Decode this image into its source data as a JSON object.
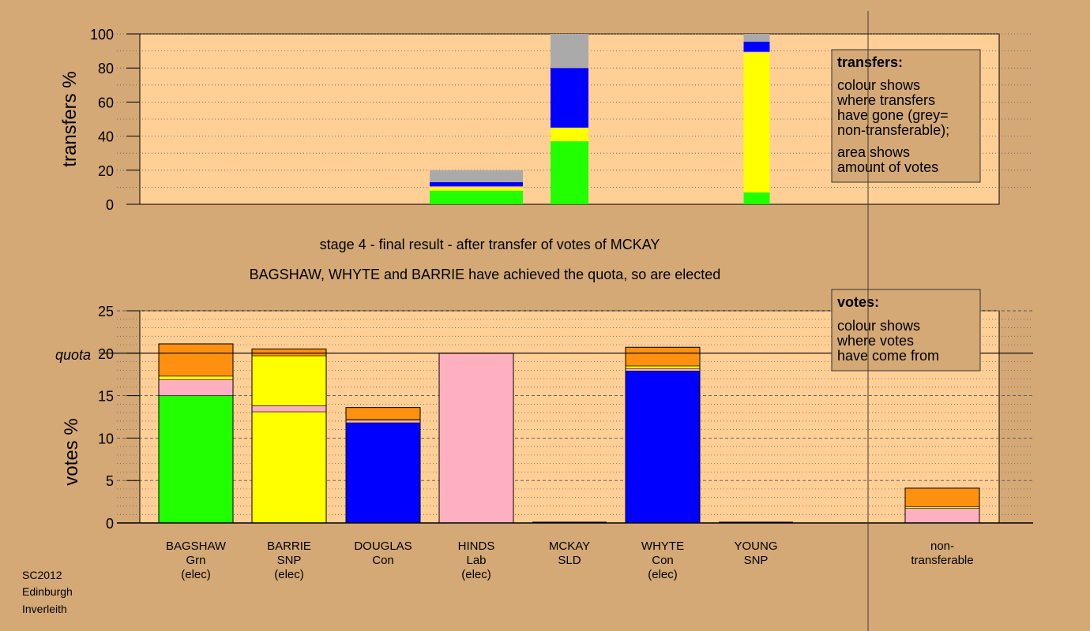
{
  "chart_data": [
    {
      "type": "bar",
      "stacked": true,
      "ylabel": "transfers %",
      "ylim": [
        0,
        100
      ],
      "yticks": [
        0,
        20,
        40,
        60,
        80,
        100
      ],
      "bars": [
        {
          "category": "HINDS",
          "segments": [
            {
              "color": "#22FF00",
              "value": 8
            },
            {
              "color": "#FFFF00",
              "value": 2
            },
            {
              "color": "#FFB0C0",
              "value": 0.5
            },
            {
              "color": "#0000FF",
              "value": 2.5
            },
            {
              "color": "#AAAAAA",
              "value": 7
            }
          ]
        },
        {
          "category": "MCKAY",
          "segments": [
            {
              "color": "#22FF00",
              "value": 37
            },
            {
              "color": "#FFFF00",
              "value": 8
            },
            {
              "color": "#0000FF",
              "value": 35
            },
            {
              "color": "#AAAAAA",
              "value": 20
            }
          ]
        },
        {
          "category": "YOUNG",
          "segments": [
            {
              "color": "#22FF00",
              "value": 7
            },
            {
              "color": "#FFFF00",
              "value": 82
            },
            {
              "color": "#FFB0C0",
              "value": 0.5
            },
            {
              "color": "#0000FF",
              "value": 6
            },
            {
              "color": "#AAAAAA",
              "value": 4.5
            }
          ]
        }
      ],
      "legend": {
        "title": "transfers:",
        "lines": [
          "colour shows",
          "where transfers",
          "have gone (grey=",
          "non-transferable);",
          "area shows",
          "amount of votes"
        ]
      }
    },
    {
      "type": "bar",
      "stacked": true,
      "ylabel": "votes %",
      "ylim": [
        0,
        25
      ],
      "yticks": [
        0,
        5,
        10,
        15,
        20,
        25
      ],
      "quota": {
        "label": "quota",
        "value": 20
      },
      "categories": [
        "BAGSHAW",
        "BARRIE",
        "DOUGLAS",
        "HINDS",
        "MCKAY",
        "WHYTE",
        "YOUNG",
        "non-transferable"
      ],
      "bars": [
        {
          "category": "BAGSHAW",
          "segments": [
            {
              "color": "#22FF00",
              "value": 15
            },
            {
              "color": "#FFB0C0",
              "value": 1.9
            },
            {
              "color": "#FFFF00",
              "value": 0.4
            },
            {
              "color": "#FF9010",
              "value": 3.8
            }
          ]
        },
        {
          "category": "BARRIE",
          "segments": [
            {
              "color": "#FFFF00",
              "value": 13.1
            },
            {
              "color": "#FFB0C0",
              "value": 0.7
            },
            {
              "color": "#FFFF00",
              "value": 5.9
            },
            {
              "color": "#FF9010",
              "value": 0.8
            }
          ]
        },
        {
          "category": "DOUGLAS",
          "segments": [
            {
              "color": "#0000FF",
              "value": 11.8
            },
            {
              "color": "#FFB0C0",
              "value": 0.3
            },
            {
              "color": "#FFFF00",
              "value": 0.1
            },
            {
              "color": "#FF9010",
              "value": 1.4
            }
          ]
        },
        {
          "category": "HINDS",
          "segments": [
            {
              "color": "#FFB0C0",
              "value": 20
            }
          ]
        },
        {
          "category": "MCKAY",
          "segments": [
            {
              "color": "#FF9010",
              "value": 0
            }
          ]
        },
        {
          "category": "WHYTE",
          "segments": [
            {
              "color": "#0000FF",
              "value": 17.9
            },
            {
              "color": "#FFB0C0",
              "value": 0.3
            },
            {
              "color": "#FFFF00",
              "value": 0.3
            },
            {
              "color": "#FF9010",
              "value": 2.2
            }
          ]
        },
        {
          "category": "YOUNG",
          "segments": [
            {
              "color": "#FFFF00",
              "value": 0
            }
          ]
        },
        {
          "category": "non-transferable",
          "segments": [
            {
              "color": "#FFB0C0",
              "value": 1.7
            },
            {
              "color": "#FFFF00",
              "value": 0.2
            },
            {
              "color": "#FF9010",
              "value": 2.2
            }
          ]
        }
      ],
      "legend": {
        "title": "votes:",
        "lines": [
          "colour shows",
          "where votes",
          "have come from"
        ]
      }
    }
  ],
  "candidates": [
    {
      "name": "BAGSHAW",
      "party": "Grn",
      "status": "(elec)"
    },
    {
      "name": "BARRIE",
      "party": "SNP",
      "status": "(elec)"
    },
    {
      "name": "DOUGLAS",
      "party": "Con",
      "status": ""
    },
    {
      "name": "HINDS",
      "party": "Lab",
      "status": "(elec)"
    },
    {
      "name": "MCKAY",
      "party": "SLD",
      "status": ""
    },
    {
      "name": "WHYTE",
      "party": "Con",
      "status": "(elec)"
    },
    {
      "name": "YOUNG",
      "party": "SNP",
      "status": ""
    }
  ],
  "nontransferable_label": [
    "non-",
    "transferable"
  ],
  "captions": {
    "line1": "stage 4 - final result - after transfer of votes of MCKAY",
    "line2": "BAGSHAW, WHYTE and BARRIE have achieved the quota, so are elected"
  },
  "footer": [
    "SC2012",
    "Edinburgh",
    "Inverleith"
  ],
  "colors": {
    "background": "#D4A976",
    "plot_bg": "#FFCF96",
    "green": "#22FF00",
    "yellow": "#FFFF00",
    "pink": "#FFB0C0",
    "blue": "#0000FF",
    "grey": "#AAAAAA",
    "orange": "#FF9010"
  }
}
